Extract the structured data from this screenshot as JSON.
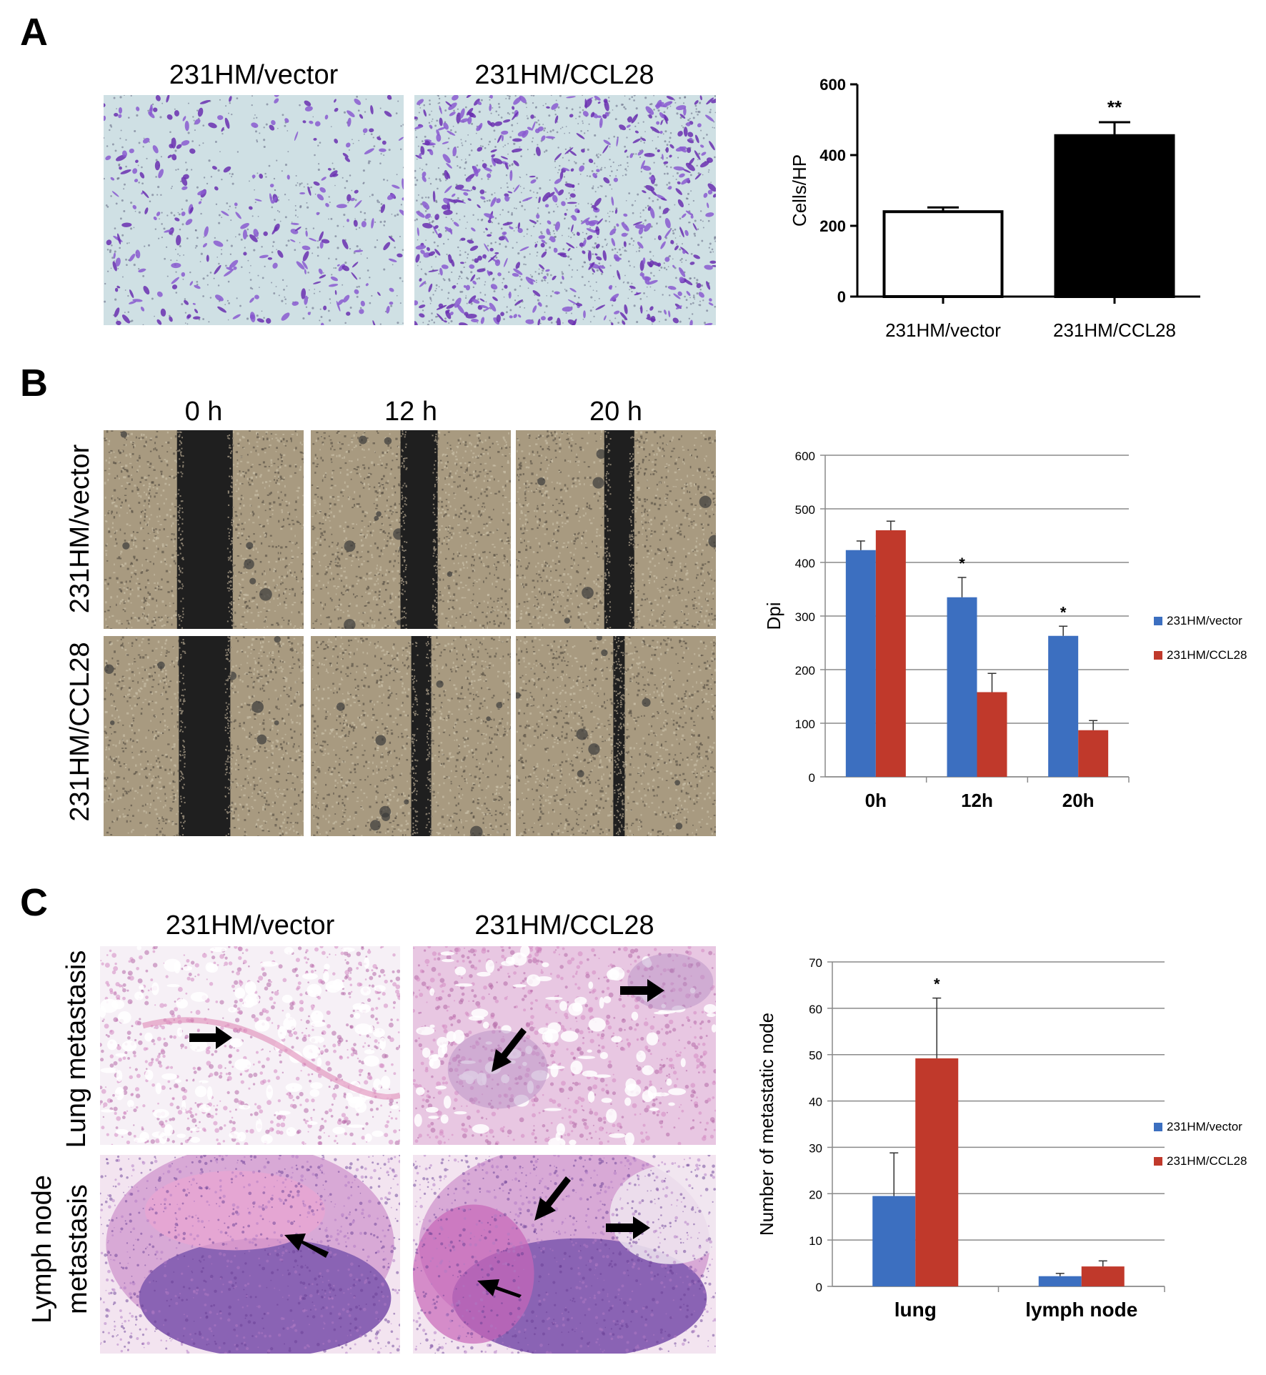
{
  "panels": {
    "a": {
      "letter": "A",
      "captions": [
        "231HM/vector",
        "231HM/CCL28"
      ]
    },
    "b": {
      "letter": "B",
      "captions": [
        "0 h",
        "12 h",
        "20 h"
      ],
      "row_labels": [
        "231HM/vector",
        "231HM/CCL28"
      ]
    },
    "c": {
      "letter": "C",
      "captions": [
        "231HM/vector",
        "231HM/CCL28"
      ],
      "row_labels": [
        "Lung metastasis",
        "Lymph node",
        "metastasis"
      ]
    }
  },
  "chart_data": [
    {
      "type": "bar",
      "panel": "A",
      "categories": [
        "231HM/vector",
        "231HM/CCL28"
      ],
      "series": [
        {
          "values": [
            240,
            455
          ],
          "errors": [
            12,
            38
          ],
          "colors": [
            "#ffffff",
            "#000000"
          ]
        }
      ],
      "ylabel": "Cells/HP",
      "ylim": [
        0,
        600
      ],
      "yticks": [
        0,
        200,
        400,
        600
      ],
      "annotations": [
        {
          "category": "231HM/CCL28",
          "text": "**"
        }
      ],
      "grid": false,
      "legend": "none"
    },
    {
      "type": "bar",
      "panel": "B",
      "categories": [
        "0h",
        "12h",
        "20h"
      ],
      "series": [
        {
          "name": "231HM/vector",
          "color": "#3c6fc0",
          "values": [
            423,
            335,
            263
          ],
          "errors": [
            17,
            37,
            18
          ]
        },
        {
          "name": "231HM/CCL28",
          "color": "#c0392b",
          "values": [
            460,
            158,
            87
          ],
          "errors": [
            17,
            35,
            18
          ]
        }
      ],
      "ylabel": "Dpi",
      "ylim": [
        0,
        600
      ],
      "yticks": [
        0,
        100,
        200,
        300,
        400,
        500,
        600
      ],
      "annotations": [
        {
          "category": "12h",
          "text": "*"
        },
        {
          "category": "20h",
          "text": "*"
        }
      ],
      "grid": true,
      "legend": "right"
    },
    {
      "type": "bar",
      "panel": "C",
      "categories": [
        "lung",
        "lymph node"
      ],
      "series": [
        {
          "name": "231HM/vector",
          "color": "#3c6fc0",
          "values": [
            19.5,
            2.2
          ],
          "errors": [
            9.3,
            0.6
          ]
        },
        {
          "name": "231HM/CCL28",
          "color": "#c0392b",
          "values": [
            49.2,
            4.3
          ],
          "errors": [
            13,
            1.2
          ]
        }
      ],
      "ylabel": "Number of metastatic node",
      "ylim": [
        0,
        70
      ],
      "yticks": [
        0,
        10,
        20,
        30,
        40,
        50,
        60,
        70
      ],
      "annotations": [
        {
          "category": "lung",
          "text": "*"
        }
      ],
      "grid": true,
      "legend": "right"
    }
  ]
}
